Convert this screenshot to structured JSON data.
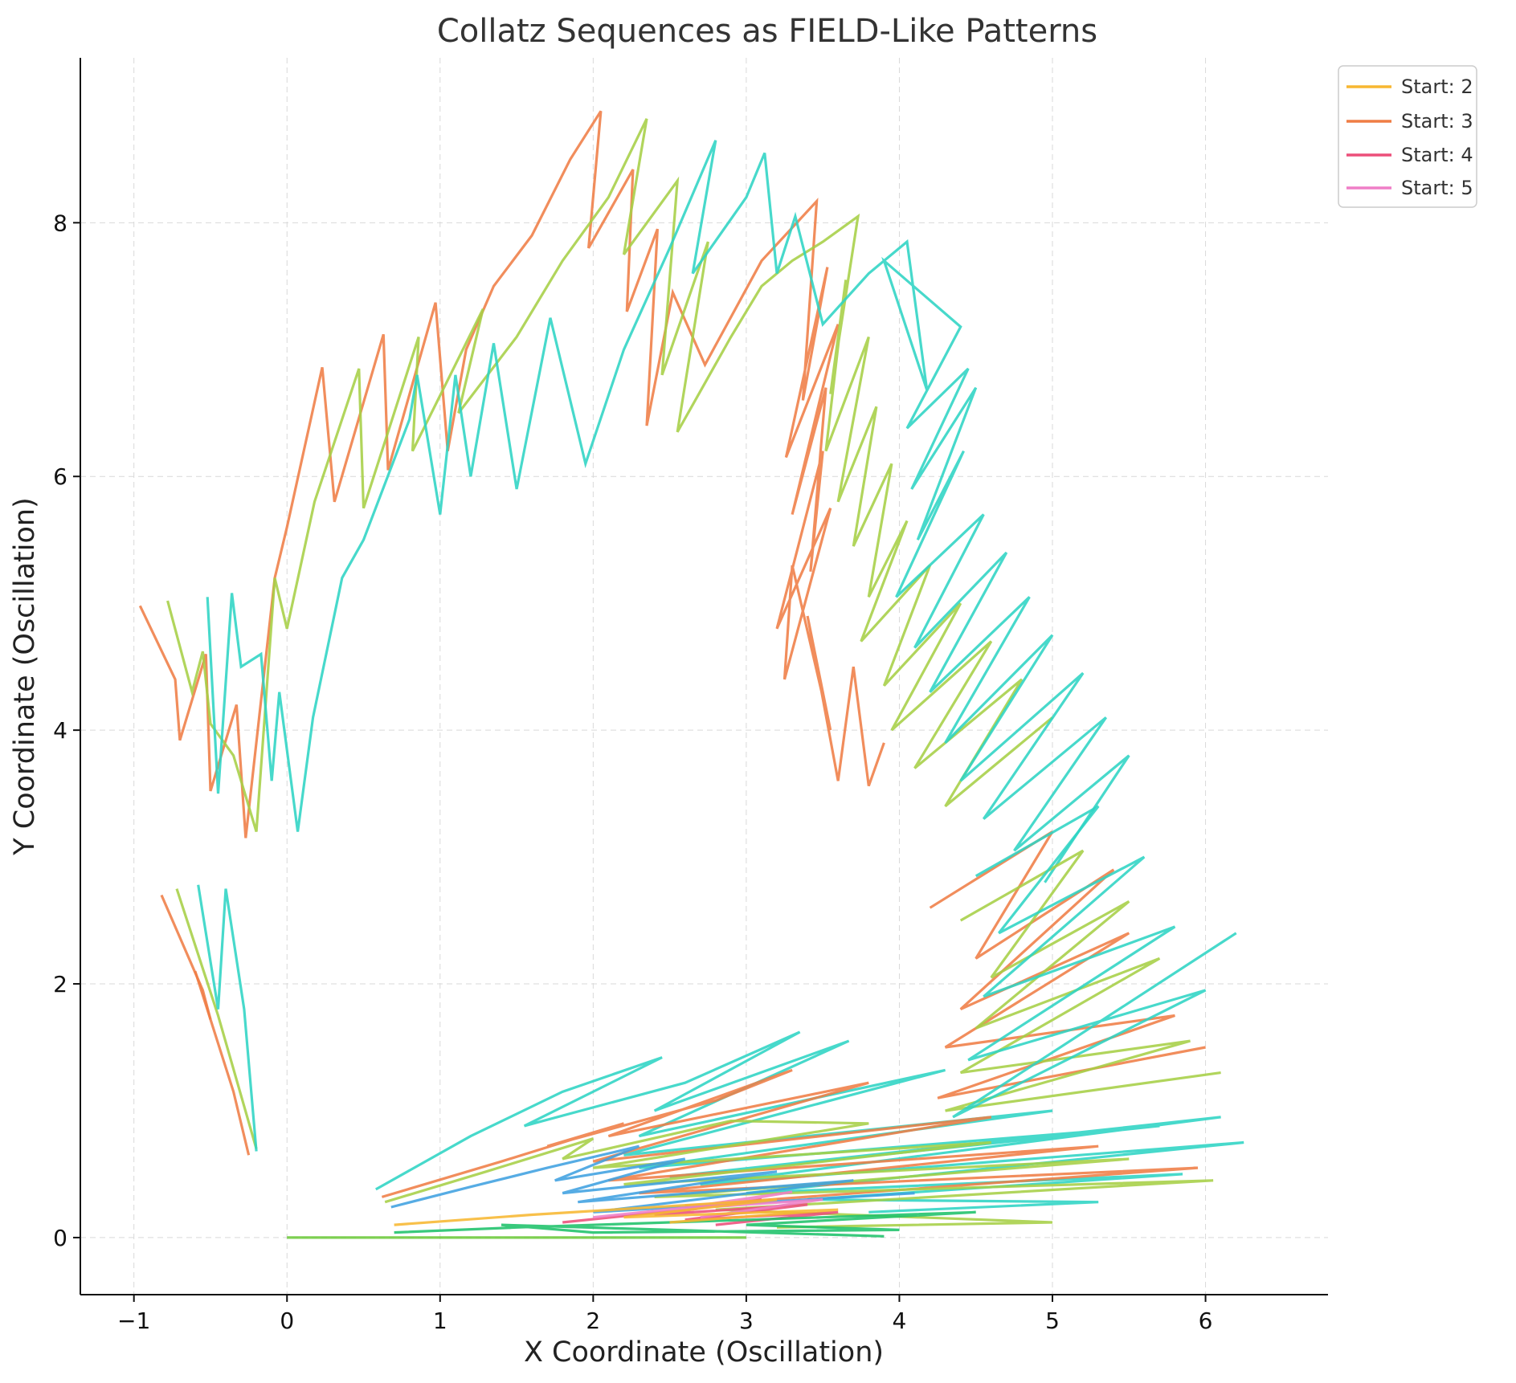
{
  "chart_data": {
    "type": "line",
    "title": "Collatz Sequences as FIELD-Like Patterns",
    "xlabel": "X Coordinate (Oscillation)",
    "ylabel": "Y Coordinate (Oscillation)",
    "xlim": [
      -1.35,
      6.8
    ],
    "ylim": [
      -0.45,
      9.3
    ],
    "xticks": [
      -1,
      0,
      1,
      2,
      3,
      4,
      5,
      6
    ],
    "yticks": [
      0,
      2,
      4,
      6,
      8
    ],
    "xtick_labels": [
      "−1",
      "0",
      "1",
      "2",
      "3",
      "4",
      "5",
      "6"
    ],
    "ytick_labels": [
      "0",
      "2",
      "4",
      "6",
      "8"
    ],
    "grid": true,
    "legend_position": "top-right",
    "legend": [
      {
        "name": "Start: 2",
        "color": "#f7b731"
      },
      {
        "name": "Start: 3",
        "color": "#ef7d45"
      },
      {
        "name": "Start: 4",
        "color": "#ec4f7a"
      },
      {
        "name": "Start: 5",
        "color": "#ef7ec7"
      }
    ],
    "colors": [
      "#f7b731",
      "#ef7d45",
      "#ec4f7a",
      "#ef7ec7",
      "#2dd4c4",
      "#a6cf45",
      "#3fa0e0",
      "#1ec26a"
    ],
    "series": [
      {
        "color": "#ef7d45",
        "x": [
          -0.96,
          -0.73,
          -0.7,
          -0.53,
          -0.5,
          -0.33,
          -0.27,
          -0.08,
          0.0,
          0.23,
          0.31,
          0.63,
          0.66,
          0.97,
          1.05,
          1.17,
          1.35,
          1.6,
          1.85,
          2.05,
          1.97,
          2.26,
          2.22,
          2.42,
          2.35,
          2.52,
          2.73,
          3.1,
          3.46,
          3.37,
          3.53,
          3.26,
          3.6,
          3.3,
          3.52,
          3.42,
          3.5,
          3.2,
          3.55,
          3.25,
          3.3,
          3.55,
          3.4,
          3.6,
          3.7,
          3.8,
          3.9
        ],
        "y": [
          4.98,
          4.4,
          3.92,
          4.6,
          3.52,
          4.2,
          3.15,
          5.2,
          5.6,
          6.86,
          5.8,
          7.12,
          6.05,
          7.37,
          6.2,
          7.0,
          7.5,
          7.9,
          8.5,
          8.88,
          7.8,
          8.42,
          7.3,
          7.95,
          6.4,
          7.45,
          6.88,
          7.7,
          8.17,
          6.6,
          7.65,
          6.15,
          7.2,
          5.7,
          6.7,
          5.25,
          6.2,
          4.8,
          5.75,
          4.4,
          5.3,
          4.0,
          4.9,
          3.6,
          4.5,
          3.56,
          3.9
        ]
      },
      {
        "color": "#a6cf45",
        "x": [
          -0.78,
          -0.62,
          -0.55,
          -0.5,
          -0.35,
          -0.2,
          -0.08,
          0.0,
          0.18,
          0.47,
          0.5,
          0.86,
          0.82,
          1.28,
          1.12,
          1.5,
          1.8,
          2.1,
          2.35,
          2.2,
          2.55,
          2.45,
          2.75,
          2.55,
          2.9,
          3.1,
          3.3,
          3.5,
          3.73,
          3.55,
          3.65,
          3.52,
          3.8,
          3.6,
          3.85,
          3.7,
          3.95,
          3.8,
          4.05,
          3.75,
          4.2,
          3.9,
          4.4,
          3.95,
          4.6,
          4.1,
          4.8,
          4.3,
          5.0
        ],
        "y": [
          5.02,
          4.3,
          4.62,
          4.05,
          3.8,
          3.2,
          5.2,
          4.8,
          5.8,
          6.85,
          5.75,
          7.1,
          6.2,
          7.32,
          6.5,
          7.1,
          7.7,
          8.2,
          8.82,
          7.75,
          8.33,
          6.8,
          7.85,
          6.35,
          7.1,
          7.5,
          7.7,
          7.85,
          8.05,
          6.65,
          7.55,
          6.2,
          7.1,
          5.8,
          6.55,
          5.45,
          6.1,
          5.05,
          5.65,
          4.7,
          5.3,
          4.35,
          5.0,
          4.0,
          4.7,
          3.7,
          4.4,
          3.4,
          4.1
        ]
      },
      {
        "color": "#2dd4c4",
        "x": [
          -0.52,
          -0.45,
          -0.36,
          -0.3,
          -0.17,
          -0.1,
          -0.05,
          0.07,
          0.17,
          0.36,
          0.5,
          0.8,
          0.85,
          1.0,
          1.1,
          1.2,
          1.35,
          1.5,
          1.72,
          1.95,
          2.2,
          2.5,
          2.8,
          2.65,
          3.0,
          3.12,
          3.2,
          3.32,
          3.5,
          3.8,
          4.05,
          4.18,
          3.9,
          4.4,
          4.05,
          4.45,
          4.08,
          4.5,
          4.12,
          4.42,
          3.98,
          4.55,
          4.1,
          4.7,
          4.2,
          4.85,
          4.3,
          5.0,
          4.4,
          5.2,
          4.55,
          5.35,
          4.75,
          5.5,
          4.95
        ],
        "y": [
          5.05,
          3.5,
          5.08,
          4.5,
          4.6,
          3.6,
          4.3,
          3.2,
          4.1,
          5.2,
          5.5,
          6.45,
          6.8,
          5.7,
          6.8,
          6.0,
          7.05,
          5.9,
          7.25,
          6.1,
          7.0,
          7.8,
          8.65,
          7.6,
          8.2,
          8.55,
          7.6,
          8.05,
          7.2,
          7.6,
          7.85,
          6.68,
          7.7,
          7.18,
          6.38,
          6.85,
          5.9,
          6.7,
          5.5,
          6.2,
          5.05,
          5.7,
          4.65,
          5.4,
          4.3,
          5.05,
          3.9,
          4.75,
          3.6,
          4.45,
          3.3,
          4.1,
          3.05,
          3.8,
          2.8
        ]
      },
      {
        "color": "#ef7d45",
        "x": [
          -0.82,
          -0.55,
          -0.5
        ],
        "y": [
          2.7,
          1.95,
          1.72
        ]
      },
      {
        "color": "#ef7d45",
        "x": [
          -0.6,
          -0.35,
          -0.25
        ],
        "y": [
          2.1,
          1.15,
          0.65
        ]
      },
      {
        "color": "#a6cf45",
        "x": [
          -0.72,
          -0.45,
          -0.2
        ],
        "y": [
          2.75,
          1.75,
          0.7
        ]
      },
      {
        "color": "#2dd4c4",
        "x": [
          -0.58,
          -0.45,
          -0.4,
          -0.28,
          -0.2
        ],
        "y": [
          2.78,
          1.8,
          2.75,
          1.8,
          0.68
        ]
      },
      {
        "color": "#ef7d45",
        "x": [
          4.2,
          5.0,
          4.5,
          5.4,
          4.4,
          5.5,
          4.3,
          5.8,
          4.25,
          6.0
        ],
        "y": [
          2.6,
          3.2,
          2.2,
          2.9,
          1.8,
          2.4,
          1.5,
          1.75,
          1.1,
          1.5
        ]
      },
      {
        "color": "#a6cf45",
        "x": [
          4.4,
          5.2,
          4.6,
          5.5,
          4.5,
          5.7,
          4.4,
          5.9,
          4.3,
          6.1
        ],
        "y": [
          2.5,
          3.05,
          2.05,
          2.65,
          1.65,
          2.2,
          1.3,
          1.55,
          1.0,
          1.3
        ]
      },
      {
        "color": "#2dd4c4",
        "x": [
          4.5,
          5.3,
          4.65,
          5.6,
          4.55,
          5.8,
          4.45,
          6.0,
          4.35,
          6.2
        ],
        "y": [
          2.85,
          3.4,
          2.4,
          3.0,
          1.9,
          2.45,
          1.4,
          1.95,
          0.95,
          2.4
        ]
      },
      {
        "color": "#2dd4c4",
        "x": [
          0.58,
          1.2,
          1.8,
          2.45,
          1.55,
          2.6,
          3.35,
          2.4,
          3.67,
          2.3,
          4.3,
          2.2,
          5.0,
          2.3,
          5.7,
          2.5,
          6.1,
          2.7,
          6.25,
          3.0,
          5.85,
          3.4,
          5.3,
          3.8
        ],
        "y": [
          0.38,
          0.8,
          1.15,
          1.42,
          0.88,
          1.22,
          1.62,
          1.0,
          1.55,
          0.8,
          1.32,
          0.65,
          1.0,
          0.55,
          0.88,
          0.48,
          0.95,
          0.42,
          0.75,
          0.35,
          0.5,
          0.3,
          0.28,
          0.2
        ]
      },
      {
        "color": "#ef7d45",
        "x": [
          0.62,
          1.4,
          2.2,
          1.7,
          2.8,
          3.3,
          2.1,
          3.8,
          2.0,
          4.6,
          2.1,
          5.3,
          2.3,
          5.95,
          2.6
        ],
        "y": [
          0.32,
          0.6,
          0.9,
          0.72,
          1.08,
          1.32,
          0.8,
          1.22,
          0.6,
          0.95,
          0.45,
          0.72,
          0.35,
          0.55,
          0.25
        ]
      },
      {
        "color": "#a6cf45",
        "x": [
          0.64,
          1.3,
          2.0,
          1.8,
          2.9,
          3.8,
          2.0,
          4.6,
          2.2,
          5.5,
          2.4,
          6.05,
          2.8,
          5.0,
          3.2
        ],
        "y": [
          0.28,
          0.52,
          0.78,
          0.62,
          0.92,
          0.9,
          0.55,
          0.75,
          0.42,
          0.62,
          0.32,
          0.45,
          0.22,
          0.12,
          0.08
        ]
      },
      {
        "color": "#3fa0e0",
        "x": [
          0.68,
          1.2,
          1.7,
          2.3,
          1.75,
          2.6,
          1.8,
          3.2,
          1.9,
          3.7,
          2.0,
          4.1
        ],
        "y": [
          0.24,
          0.4,
          0.55,
          0.72,
          0.45,
          0.62,
          0.35,
          0.52,
          0.28,
          0.45,
          0.2,
          0.35
        ]
      },
      {
        "color": "#ec4f7a",
        "x": [
          1.8,
          2.6,
          3.1,
          2.4,
          3.4,
          2.6,
          3.6,
          2.8
        ],
        "y": [
          0.12,
          0.22,
          0.3,
          0.18,
          0.26,
          0.14,
          0.2,
          0.1
        ]
      },
      {
        "color": "#ef7ec7",
        "x": [
          2.0,
          2.8,
          3.3,
          2.5,
          3.5,
          2.7
        ],
        "y": [
          0.16,
          0.26,
          0.36,
          0.22,
          0.3,
          0.16
        ]
      },
      {
        "color": "#1ec26a",
        "x": [
          0.7,
          1.5,
          2.5,
          3.5,
          4.5,
          3.0,
          4.0,
          2.0,
          1.4,
          3.9
        ],
        "y": [
          0.04,
          0.08,
          0.12,
          0.16,
          0.2,
          0.1,
          0.06,
          0.04,
          0.1,
          0.01
        ]
      },
      {
        "color": "#f7b731",
        "x": [
          0.7,
          1.6,
          2.4,
          3.2,
          2.2,
          3.6,
          2.5
        ],
        "y": [
          0.1,
          0.18,
          0.24,
          0.3,
          0.16,
          0.22,
          0.12
        ]
      },
      {
        "color": "#6cc93a",
        "x": [
          0.0,
          0.7,
          1.4,
          2.0,
          2.6,
          3.0
        ],
        "y": [
          0.0,
          0.0,
          0.0,
          0.0,
          0.0,
          0.0
        ]
      }
    ]
  }
}
